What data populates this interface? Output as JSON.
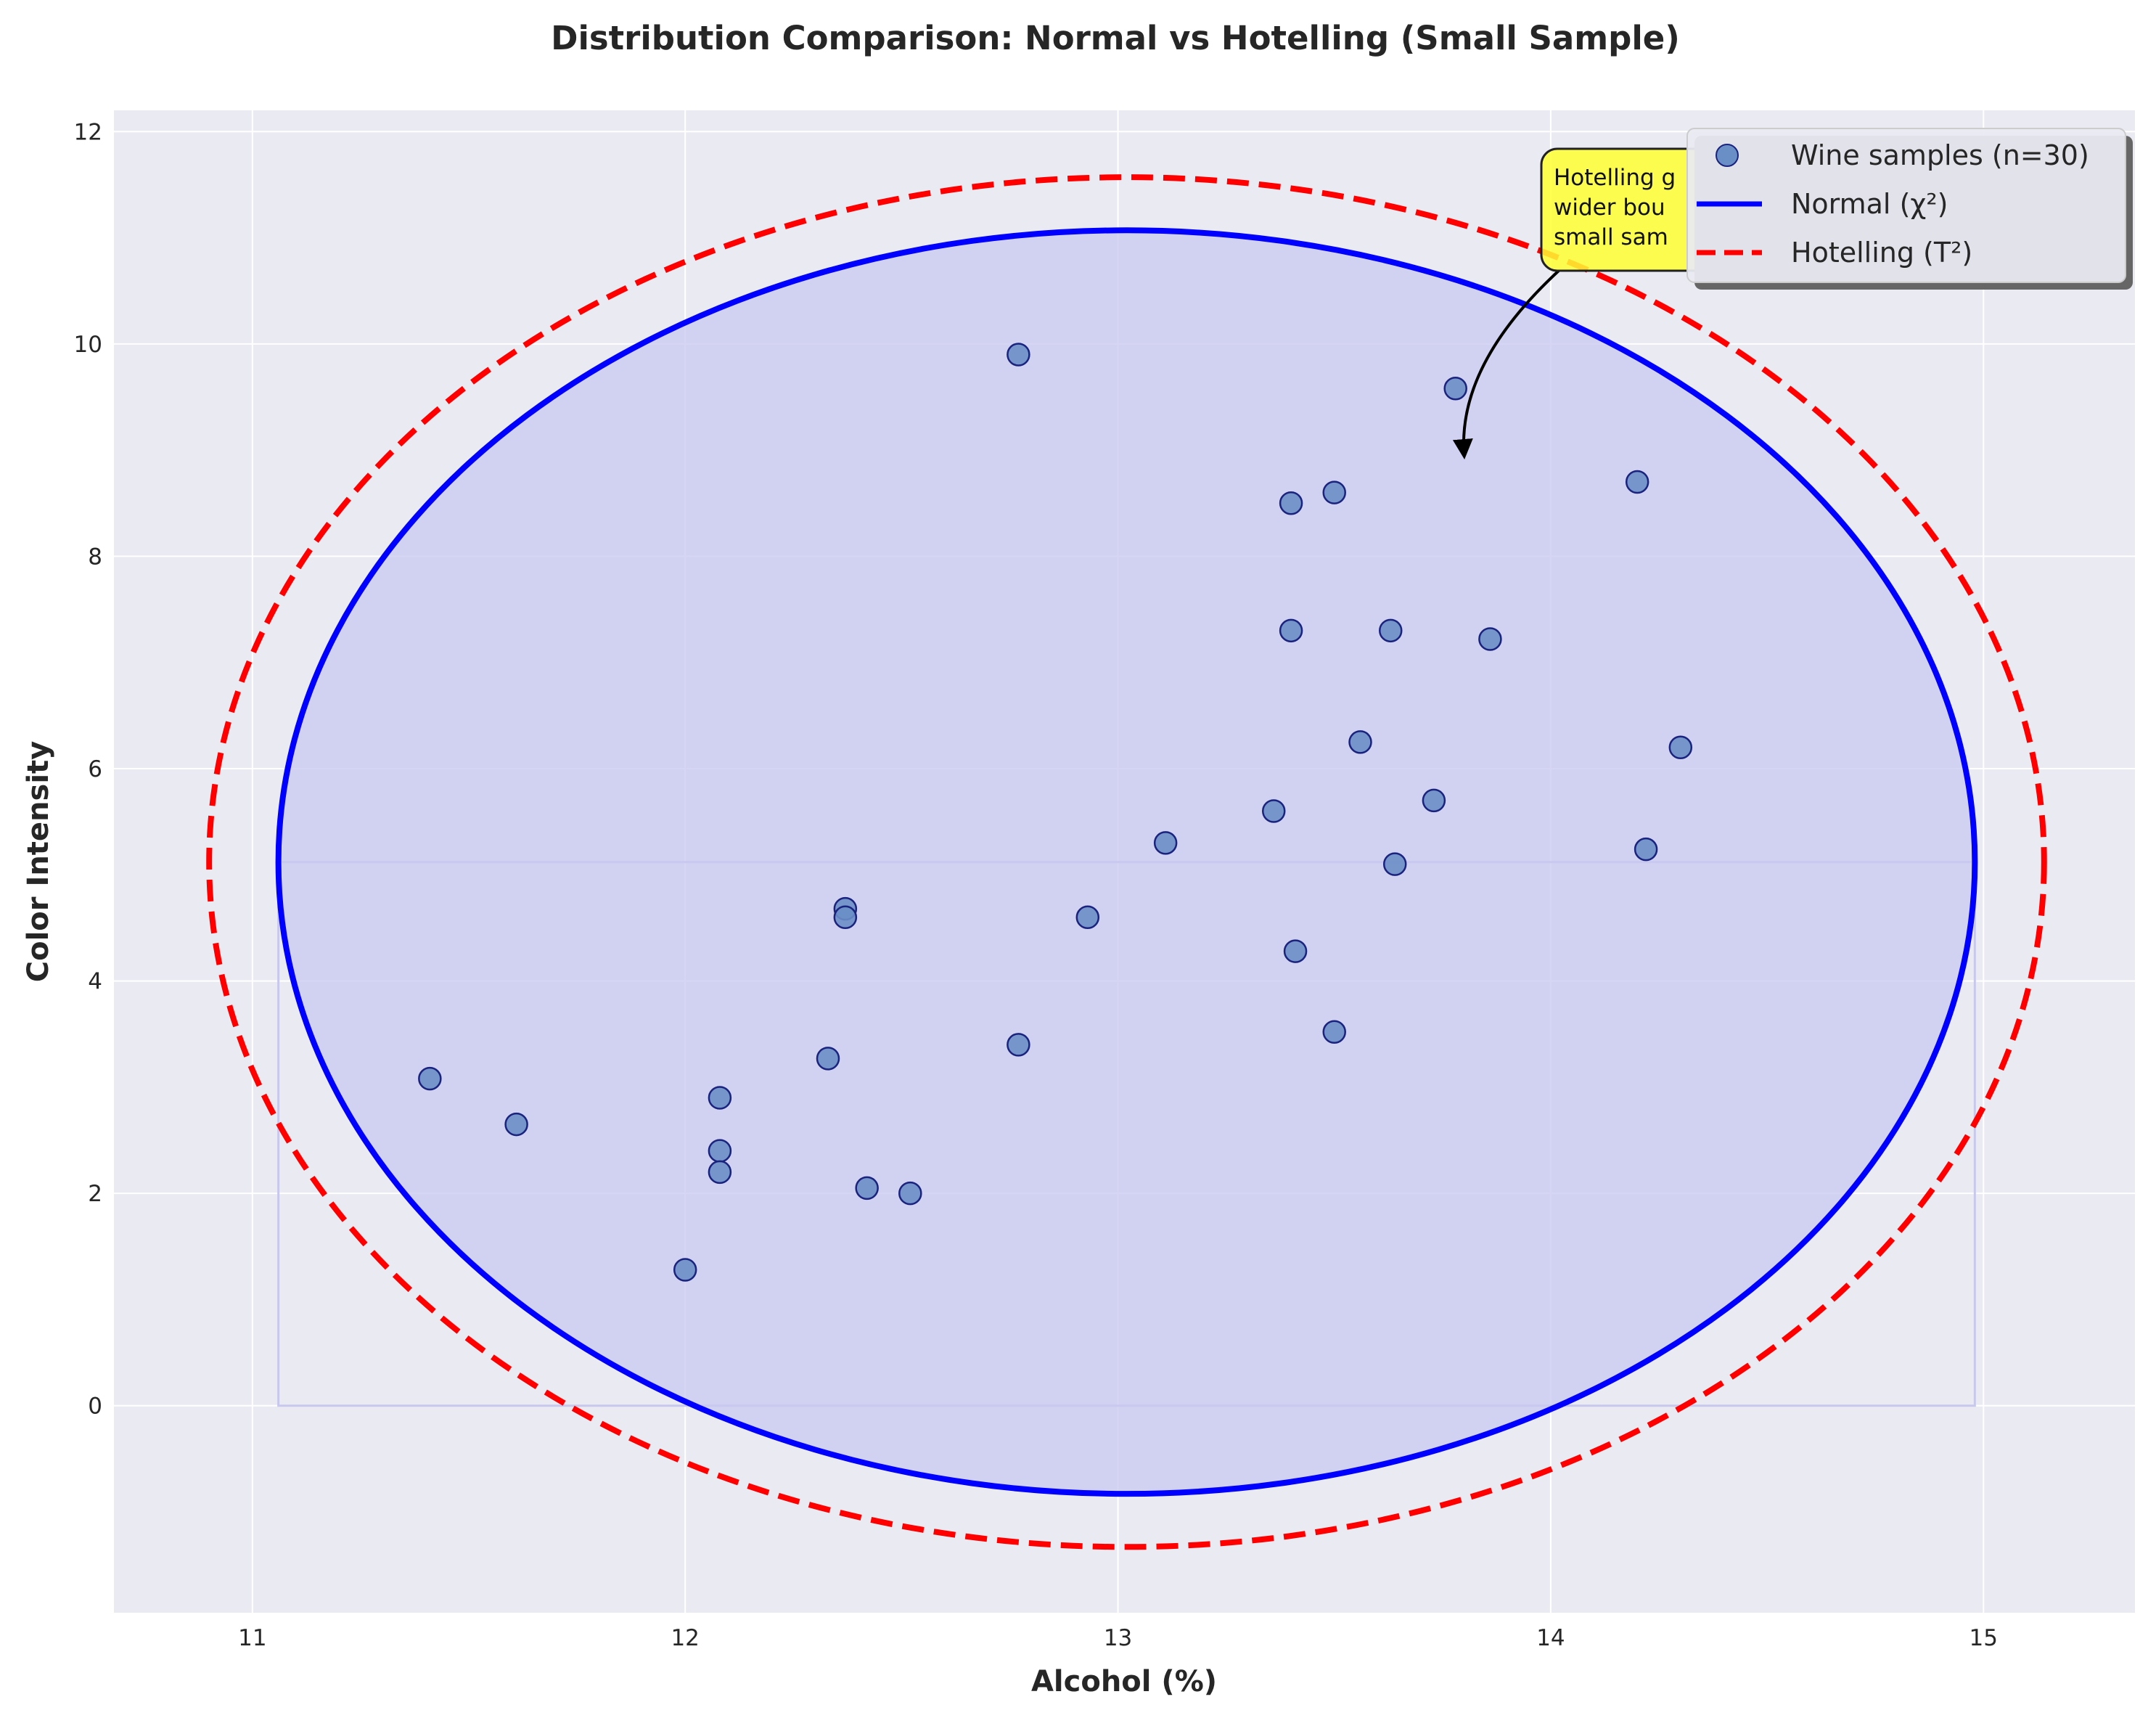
{
  "chart_data": {
    "type": "scatter",
    "title": "Distribution Comparison: Normal vs Hotelling (Small Sample)",
    "xlabel": "Alcohol (%)",
    "ylabel": "Color Intensity",
    "xlim": [
      10.68,
      15.35
    ],
    "ylim": [
      -1.95,
      12.2
    ],
    "xticks": [
      11,
      12,
      13,
      14,
      15
    ],
    "yticks": [
      0,
      2,
      4,
      6,
      8,
      10,
      12
    ],
    "grid": true,
    "legend_position": "top-right",
    "colors": {
      "background": "#eaeaf2",
      "grid": "#ffffff",
      "points_fill": "#6a8ec6",
      "points_edge": "#1a237e",
      "normal": "#0000ff",
      "normal_fill": "#c8c8f0",
      "hotelling": "#ff0000",
      "annotation_bg": "#ffff33"
    },
    "series": [
      {
        "name": "Wine samples (n=30)",
        "type": "scatter",
        "points": [
          [
            11.41,
            3.08
          ],
          [
            11.61,
            2.65
          ],
          [
            12.0,
            1.28
          ],
          [
            12.08,
            2.9
          ],
          [
            12.08,
            2.4
          ],
          [
            12.08,
            2.2
          ],
          [
            12.33,
            3.27
          ],
          [
            12.37,
            4.68
          ],
          [
            12.37,
            4.6
          ],
          [
            12.42,
            2.05
          ],
          [
            12.52,
            2.0
          ],
          [
            12.77,
            9.9
          ],
          [
            12.77,
            3.4
          ],
          [
            12.93,
            4.6
          ],
          [
            13.11,
            5.3
          ],
          [
            13.36,
            5.6
          ],
          [
            13.4,
            8.5
          ],
          [
            13.4,
            7.3
          ],
          [
            13.41,
            4.28
          ],
          [
            13.5,
            8.6
          ],
          [
            13.5,
            3.52
          ],
          [
            13.56,
            6.25
          ],
          [
            13.63,
            7.3
          ],
          [
            13.64,
            5.1
          ],
          [
            13.73,
            5.7
          ],
          [
            13.78,
            9.58
          ],
          [
            13.86,
            7.22
          ],
          [
            14.2,
            8.7
          ],
          [
            14.22,
            5.24
          ],
          [
            14.3,
            6.2
          ]
        ]
      },
      {
        "name": "Normal (χ²)",
        "type": "ellipse",
        "center": [
          13.02,
          5.12
        ],
        "semi_axes": [
          1.96,
          5.95
        ]
      },
      {
        "name": "Hotelling (T²)",
        "type": "ellipse",
        "center": [
          13.02,
          5.12
        ],
        "semi_axes": [
          2.12,
          6.45
        ]
      }
    ],
    "annotation": {
      "lines": [
        "Hotelling g",
        "wider bou",
        "small sam"
      ],
      "arrow_target": [
        13.8,
        8.95
      ]
    }
  }
}
